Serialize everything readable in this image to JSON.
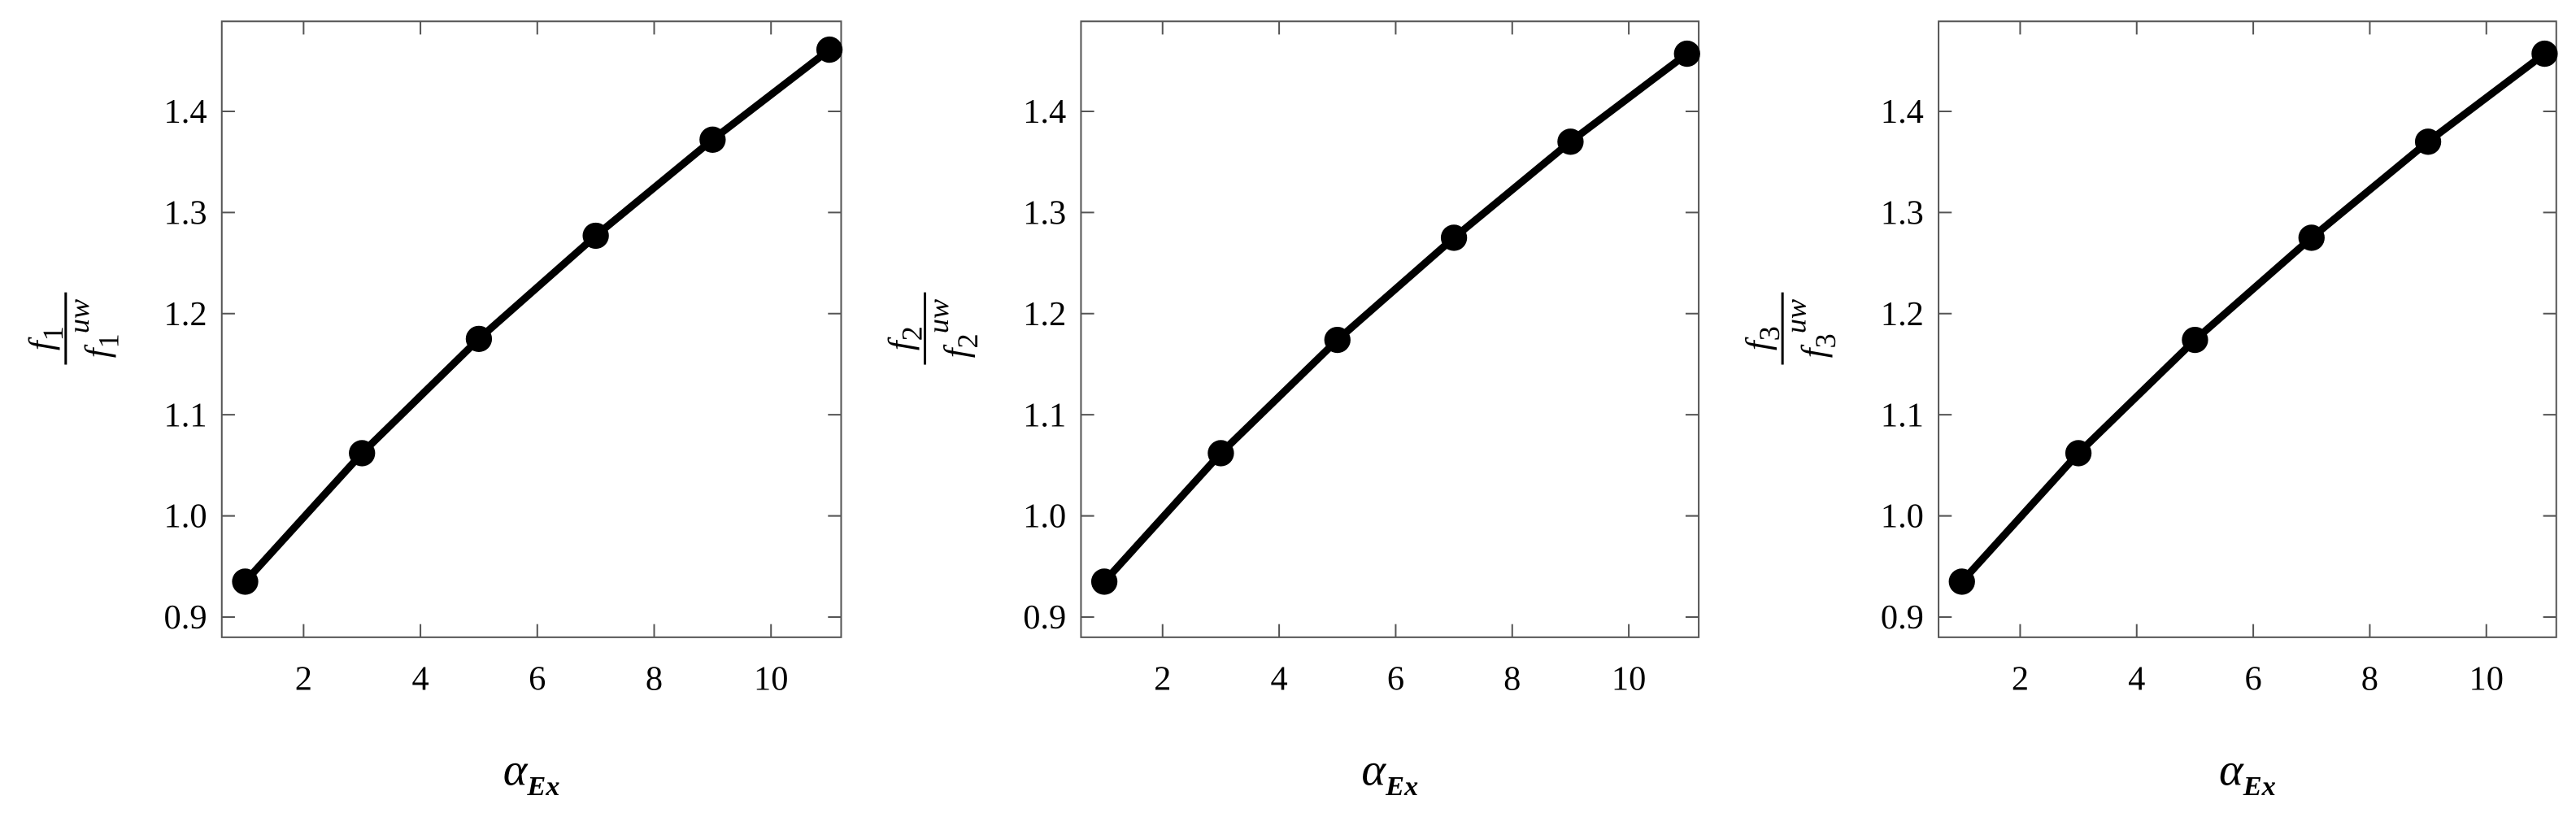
{
  "chart_data": [
    {
      "type": "line",
      "x": [
        1,
        3,
        5,
        7,
        9,
        11
      ],
      "values": [
        0.935,
        1.062,
        1.175,
        1.277,
        1.372,
        1.461
      ],
      "color": "#000000",
      "xlim": [
        0.6,
        11.2
      ],
      "ylim": [
        0.88,
        1.489
      ],
      "xticks": [
        2,
        4,
        6,
        8,
        10
      ],
      "yticks": [
        0.9,
        {
          "value": 1,
          "label": "1.0"
        },
        1.1,
        1.2,
        1.3,
        1.4
      ],
      "xlabel": "α",
      "xlabel_sub": "Ex",
      "ylabel_numerator": "f",
      "ylabel_index": "1",
      "ylabel_superscript": "uw"
    },
    {
      "type": "line",
      "x": [
        1,
        3,
        5,
        7,
        9,
        11
      ],
      "values": [
        0.935,
        1.062,
        1.174,
        1.275,
        1.37,
        1.457
      ],
      "color": "#000000",
      "xlim": [
        0.6,
        11.2
      ],
      "ylim": [
        0.88,
        1.489
      ],
      "xticks": [
        2,
        4,
        6,
        8,
        10
      ],
      "yticks": [
        0.9,
        {
          "value": 1,
          "label": "1.0"
        },
        1.1,
        1.2,
        1.3,
        1.4
      ],
      "xlabel": "α",
      "xlabel_sub": "Ex",
      "ylabel_numerator": "f",
      "ylabel_index": "2",
      "ylabel_superscript": "uw"
    },
    {
      "type": "line",
      "x": [
        1,
        3,
        5,
        7,
        9,
        11
      ],
      "values": [
        0.935,
        1.062,
        1.174,
        1.275,
        1.37,
        1.457
      ],
      "color": "#000000",
      "xlim": [
        0.6,
        11.2
      ],
      "ylim": [
        0.88,
        1.489
      ],
      "xticks": [
        2,
        4,
        6,
        8,
        10
      ],
      "yticks": [
        0.9,
        {
          "value": 1,
          "label": "1.0"
        },
        1.1,
        1.2,
        1.3,
        1.4
      ],
      "xlabel": "α",
      "xlabel_sub": "Ex",
      "ylabel_numerator": "f",
      "ylabel_index": "3",
      "ylabel_superscript": "uw"
    }
  ]
}
